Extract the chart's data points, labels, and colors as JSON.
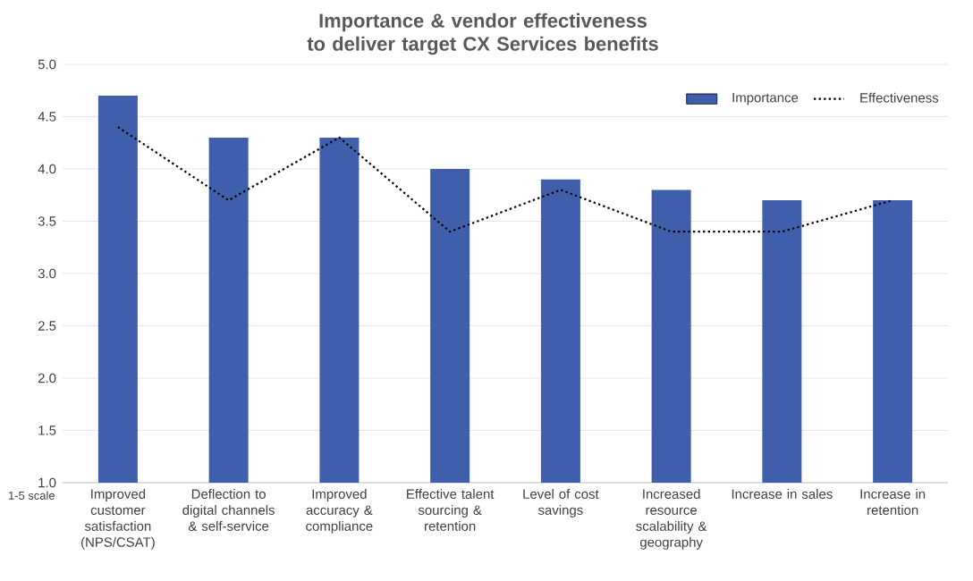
{
  "chart_data": {
    "type": "bar",
    "title": "Importance & vendor effectiveness to deliver target CX Services benefits",
    "categories": [
      "Improved customer satisfaction (NPS/CSAT)",
      "Deflection to digital channels & self-service",
      "Improved accuracy & compliance",
      "Effective talent sourcing & retention",
      "Level of cost savings",
      "Increased resource scalability & geography",
      "Increase in sales",
      "Increase in retention"
    ],
    "series": [
      {
        "name": "Importance",
        "color": "#3f5fad",
        "values": [
          4.7,
          4.3,
          4.3,
          4.0,
          3.9,
          3.8,
          3.7,
          3.7
        ]
      },
      {
        "name": "Effectiveness",
        "type": "line",
        "color": "#000000",
        "line_style": "dotted",
        "marker": "none",
        "values": [
          4.4,
          3.7,
          4.3,
          3.4,
          3.8,
          3.4,
          3.4,
          3.7
        ]
      }
    ],
    "ylim": [
      1.0,
      5.0
    ],
    "yticks": [
      {
        "value": 1.0,
        "label": "1.0"
      },
      {
        "value": 1.5,
        "label": "1.5"
      },
      {
        "value": 2.0,
        "label": "2.0"
      },
      {
        "value": 2.5,
        "label": "2.5"
      },
      {
        "value": 3.0,
        "label": "3.0"
      },
      {
        "value": 3.5,
        "label": "3.5"
      },
      {
        "value": 4.0,
        "label": "4.0"
      },
      {
        "value": 4.5,
        "label": "4.5"
      },
      {
        "value": 5.0,
        "label": "5.0"
      }
    ],
    "grid": "y",
    "legend": "top right",
    "annotations": [
      "1-5 scale"
    ]
  }
}
